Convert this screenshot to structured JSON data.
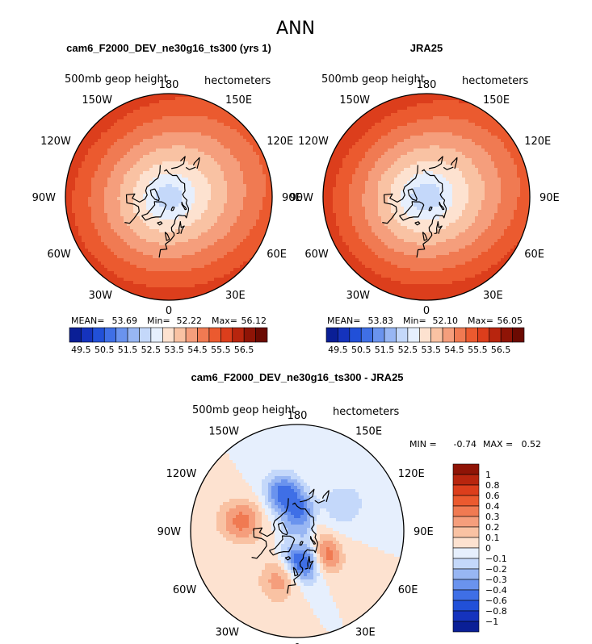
{
  "chart_data": [
    {
      "type": "heatmap",
      "projection": "north-polar-stereographic",
      "title": "cam6_F2000_DEV_ne30g16_ts300 (yrs 1)",
      "variable_label": "500mb geop height",
      "units_label": "hectometers",
      "season": "ANN",
      "lon_labels": [
        "180",
        "150E",
        "120E",
        "90E",
        "60E",
        "30E",
        "0",
        "30W",
        "60W",
        "90W",
        "120W",
        "150W"
      ],
      "stats": {
        "mean_label": "MEAN=",
        "mean": "53.69",
        "min_label": "Min=",
        "min": "52.22",
        "max_label": "Max=",
        "max": "56.12"
      },
      "contour_levels": [
        49.5,
        50.0,
        50.5,
        51.0,
        51.5,
        52.0,
        52.5,
        53.0,
        53.5,
        54.0,
        54.5,
        55.0,
        55.5,
        56.0,
        56.5
      ],
      "colorbar_tick_labels": [
        "49.5",
        "50.5",
        "51.5",
        "52.5",
        "53.5",
        "54.5",
        "55.5",
        "56.5"
      ],
      "zonal_structure": {
        "pole_value": 52.3,
        "edge_value": 55.6
      }
    },
    {
      "type": "heatmap",
      "projection": "north-polar-stereographic",
      "title": "JRA25",
      "variable_label": "500mb geop height",
      "units_label": "hectometers",
      "lon_labels": [
        "180",
        "150E",
        "120E",
        "90E",
        "60E",
        "30E",
        "0",
        "30W",
        "60W",
        "90W",
        "120W",
        "150W"
      ],
      "stats": {
        "mean_label": "MEAN=",
        "mean": "53.83",
        "min_label": "Min=",
        "min": "52.10",
        "max_label": "Max=",
        "max": "56.05"
      },
      "contour_levels": [
        49.5,
        50.0,
        50.5,
        51.0,
        51.5,
        52.0,
        52.5,
        53.0,
        53.5,
        54.0,
        54.5,
        55.0,
        55.5,
        56.0,
        56.5
      ],
      "colorbar_tick_labels": [
        "49.5",
        "50.5",
        "51.5",
        "52.5",
        "53.5",
        "54.5",
        "55.5",
        "56.5"
      ],
      "zonal_structure": {
        "pole_value": 52.2,
        "edge_value": 55.7
      }
    },
    {
      "type": "heatmap",
      "projection": "north-polar-stereographic",
      "title": "cam6_F2000_DEV_ne30g16_ts300 - JRA25",
      "variable_label": "500mb geop height",
      "units_label": "hectometers",
      "lon_labels": [
        "180",
        "150E",
        "120E",
        "90E",
        "60E",
        "30E",
        "0",
        "30W",
        "60W",
        "90W",
        "120W",
        "150W"
      ],
      "stats": {
        "min_label": "MIN =",
        "min": "-0.74",
        "max_label": "MAX =",
        "max": "0.52"
      },
      "contour_levels": [
        -1,
        -0.8,
        -0.6,
        -0.4,
        -0.3,
        -0.2,
        -0.1,
        0,
        0.1,
        0.2,
        0.3,
        0.4,
        0.6,
        0.8,
        1
      ],
      "colorbar_tick_labels": [
        "1",
        "0.8",
        "0.6",
        "0.4",
        "0.3",
        "0.2",
        "0.1",
        "0",
        "−0.1",
        "−0.2",
        "−0.3",
        "−0.4",
        "−0.6",
        "−0.8",
        "−1"
      ],
      "anomaly_centers": [
        {
          "lon": 15,
          "lat": 63,
          "value": -0.74
        },
        {
          "lon": -160,
          "lat": 55,
          "value": -0.45
        },
        {
          "lon": 175,
          "lat": 75,
          "value": -0.35
        },
        {
          "lon": 45,
          "lat": 60,
          "value": 0.5
        },
        {
          "lon": -100,
          "lat": 42,
          "value": 0.35
        },
        {
          "lon": -20,
          "lat": 45,
          "value": 0.25
        },
        {
          "lon": 120,
          "lat": 45,
          "value": -0.2
        }
      ]
    }
  ],
  "header": {
    "season": "ANN"
  },
  "colors": {
    "abs_palette": [
      "#0a1f96",
      "#1533bd",
      "#2150d8",
      "#3f6fe6",
      "#6a93ee",
      "#98b6f3",
      "#c4d8fa",
      "#e6effd",
      "#fde2d0",
      "#f9c2a3",
      "#f59e7c",
      "#f07a52",
      "#eb5a2f",
      "#dc3e1c",
      "#b8250e",
      "#8f1406",
      "#6b0a02"
    ],
    "diff_palette": [
      "#0a1f96",
      "#1533bd",
      "#2150d8",
      "#3f6fe6",
      "#6a93ee",
      "#98b6f3",
      "#c4d8fa",
      "#e6effd",
      "#fde2d0",
      "#f9c2a3",
      "#f59e7c",
      "#f07a52",
      "#eb5a2f",
      "#dc3e1c",
      "#b8250e",
      "#8f1406"
    ]
  }
}
